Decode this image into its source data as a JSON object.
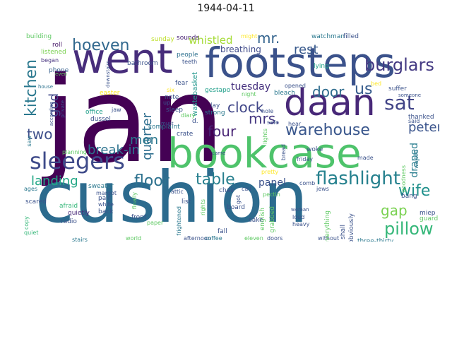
{
  "title": "1944-04-11",
  "words": [
    {
      "text": "jan",
      "color": "#440154"
    },
    {
      "text": "cushion",
      "color": "#2c6b8e"
    },
    {
      "text": "bookcase",
      "color": "#4ec36b"
    },
    {
      "text": "footsteps",
      "color": "#3b528b"
    },
    {
      "text": "went",
      "color": "#472d7b"
    },
    {
      "text": "daan",
      "color": "#482878"
    },
    {
      "text": "sleegers",
      "color": "#3e4a89"
    },
    {
      "text": "sat",
      "color": "#414487"
    },
    {
      "text": "burglars",
      "color": "#443a83"
    },
    {
      "text": "hoeven",
      "color": "#31688e"
    },
    {
      "text": "flashlight",
      "color": "#26818e"
    },
    {
      "text": "pillow",
      "color": "#35b779"
    },
    {
      "text": "kitchen",
      "color": "#2a788e"
    },
    {
      "text": "warehouse",
      "color": "#39568c"
    },
    {
      "text": "door",
      "color": "#2f6c8e"
    },
    {
      "text": "us",
      "color": "#365c8d"
    },
    {
      "text": "floor",
      "color": "#2d718e"
    },
    {
      "text": "wife",
      "color": "#21918c"
    },
    {
      "text": "table",
      "color": "#277f8e"
    },
    {
      "text": "clock",
      "color": "#404688"
    },
    {
      "text": "mrs.",
      "color": "#453781"
    },
    {
      "text": "mr.",
      "color": "#33638d"
    },
    {
      "text": "four",
      "color": "#482475"
    },
    {
      "text": "quarter",
      "color": "#2e6e8e"
    },
    {
      "text": "god",
      "color": "#3f4889"
    },
    {
      "text": "two",
      "color": "#3d4e8a"
    },
    {
      "text": "men",
      "color": "#2a778e"
    },
    {
      "text": "break-in",
      "color": "#2c728e"
    },
    {
      "text": "landing",
      "color": "#22a785"
    },
    {
      "text": "rest",
      "color": "#38598c"
    },
    {
      "text": "peter",
      "color": "#3a548c"
    },
    {
      "text": "gap",
      "color": "#7ad151"
    },
    {
      "text": "draped",
      "color": "#287d8e"
    },
    {
      "text": "panel",
      "color": "#3b528b"
    },
    {
      "text": "whistled",
      "color": "#a5db36"
    },
    {
      "text": "tuesday",
      "color": "#46307e"
    },
    {
      "text": "breathing",
      "color": "#3e4989"
    },
    {
      "text": "wastebasket",
      "color": "#1f968b"
    },
    {
      "text": "sunday",
      "color": "#bddf26"
    },
    {
      "text": "sounds",
      "color": "#482173"
    },
    {
      "text": "building",
      "color": "#5ec962"
    },
    {
      "text": "watchman",
      "color": "#2a788e"
    },
    {
      "text": "filled",
      "color": "#3b528b"
    },
    {
      "text": "might",
      "color": "#fde725"
    },
    {
      "text": "roll",
      "color": "#48186a"
    },
    {
      "text": "listened",
      "color": "#7ad151"
    },
    {
      "text": "began",
      "color": "#46327e"
    },
    {
      "text": "phone",
      "color": "#355f8d"
    },
    {
      "text": "people",
      "color": "#2d708e"
    },
    {
      "text": "fear",
      "color": "#3b528b"
    },
    {
      "text": "lying",
      "color": "#20a386"
    },
    {
      "text": "bed",
      "color": "#fde725"
    },
    {
      "text": "easter",
      "color": "#fde725"
    },
    {
      "text": "six",
      "color": "#fde725"
    },
    {
      "text": "gestapo",
      "color": "#1f9e89"
    },
    {
      "text": "bleach",
      "color": "#2a788e"
    },
    {
      "text": "suffer",
      "color": "#3b528b"
    },
    {
      "text": "house",
      "color": "#2c728e"
    },
    {
      "text": "office",
      "color": "#1f9e89"
    },
    {
      "text": "saw",
      "color": "#2a788e"
    },
    {
      "text": "dussel",
      "color": "#3b528b"
    },
    {
      "text": "planning",
      "color": "#5ec962"
    },
    {
      "text": "sweater",
      "color": "#2a788e"
    },
    {
      "text": "margot",
      "color": "#3b528b"
    },
    {
      "text": "ages",
      "color": "#2a788e"
    },
    {
      "text": "scared",
      "color": "#3b528b"
    },
    {
      "text": "afraid",
      "color": "#35b779"
    },
    {
      "text": "quietly",
      "color": "#482878"
    },
    {
      "text": "radio",
      "color": "#3b528b"
    },
    {
      "text": "pair",
      "color": "#3b528b"
    },
    {
      "text": "white",
      "color": "#3b528b"
    },
    {
      "text": "back",
      "color": "#3b528b"
    },
    {
      "text": "copy",
      "color": "#35b779"
    },
    {
      "text": "quiet",
      "color": "#35b779"
    },
    {
      "text": "stairs",
      "color": "#2a788e"
    },
    {
      "text": "world",
      "color": "#5ec962"
    },
    {
      "text": "afternoon",
      "color": "#3b528b"
    },
    {
      "text": "coffee",
      "color": "#2a788e"
    },
    {
      "text": "eleven",
      "color": "#5ec962"
    },
    {
      "text": "doors",
      "color": "#3b528b"
    },
    {
      "text": "without",
      "color": "#3b528b"
    },
    {
      "text": "three-thirty",
      "color": "#2a788e"
    },
    {
      "text": "fall",
      "color": "#3b528b"
    },
    {
      "text": "sake",
      "color": "#3b528b"
    },
    {
      "text": "board",
      "color": "#3b528b"
    },
    {
      "text": "front",
      "color": "#3b528b"
    },
    {
      "text": "list",
      "color": "#3b528b"
    },
    {
      "text": "paper",
      "color": "#5ec962"
    },
    {
      "text": "frightened",
      "color": "#2a788e"
    },
    {
      "text": "rights",
      "color": "#5ec962"
    },
    {
      "text": "note",
      "color": "#3b528b"
    },
    {
      "text": "sleep",
      "color": "#3b528b"
    },
    {
      "text": "up",
      "color": "#3b528b"
    },
    {
      "text": "teeth",
      "color": "#3b528b"
    },
    {
      "text": "bathroom",
      "color": "#3b528b"
    },
    {
      "text": "lay",
      "color": "#3b528b"
    },
    {
      "text": "strong",
      "color": "#2a788e"
    },
    {
      "text": "complaint",
      "color": "#2a788e"
    },
    {
      "text": "diary",
      "color": "#5ec962"
    },
    {
      "text": "hole",
      "color": "#3b528b"
    },
    {
      "text": "safe",
      "color": "#3b528b"
    },
    {
      "text": "crate",
      "color": "#3b528b"
    },
    {
      "text": "d.",
      "color": "#3b528b"
    },
    {
      "text": "woke",
      "color": "#3b528b"
    },
    {
      "text": "friday",
      "color": "#3b528b"
    },
    {
      "text": "thanked",
      "color": "#3b528b"
    },
    {
      "text": "waited",
      "color": "#2a788e"
    },
    {
      "text": "goodness",
      "color": "#5ec962"
    },
    {
      "text": "made",
      "color": "#3b528b"
    },
    {
      "text": "pretty",
      "color": "#fde725"
    },
    {
      "text": "attic",
      "color": "#3b528b"
    },
    {
      "text": "chair",
      "color": "#3b528b"
    },
    {
      "text": "call",
      "color": "#3b528b"
    },
    {
      "text": "got",
      "color": "#3b528b"
    },
    {
      "text": "pectin",
      "color": "#5ec962"
    },
    {
      "text": "jews",
      "color": "#3b528b"
    },
    {
      "text": "comb",
      "color": "#3b528b"
    },
    {
      "text": "bang",
      "color": "#3b528b"
    },
    {
      "text": "miep",
      "color": "#3b528b"
    },
    {
      "text": "guard",
      "color": "#5ec962"
    },
    {
      "text": "woman",
      "color": "#3b528b"
    },
    {
      "text": "loud",
      "color": "#3b528b"
    },
    {
      "text": "heavy",
      "color": "#3b528b"
    },
    {
      "text": "everything",
      "color": "#5ec962"
    },
    {
      "text": "shall",
      "color": "#3b528b"
    },
    {
      "text": "obviously",
      "color": "#3b528b"
    },
    {
      "text": "english",
      "color": "#5ec962"
    },
    {
      "text": "grabbed",
      "color": "#5ec962"
    },
    {
      "text": "finally",
      "color": "#5ec962"
    },
    {
      "text": "lights",
      "color": "#5ec962"
    },
    {
      "text": "bread",
      "color": "#3b528b"
    },
    {
      "text": "opened",
      "color": "#3b528b"
    },
    {
      "text": "hear",
      "color": "#3b528b"
    },
    {
      "text": "said",
      "color": "#3b528b"
    },
    {
      "text": "someone",
      "color": "#3b528b"
    },
    {
      "text": "downstairs",
      "color": "#3b528b"
    },
    {
      "text": "according",
      "color": "#3b528b"
    },
    {
      "text": "private",
      "color": "#3b528b"
    },
    {
      "text": "jaw",
      "color": "#3b528b"
    },
    {
      "text": "must",
      "color": "#3b528b"
    },
    {
      "text": "even",
      "color": "#5ec962"
    },
    {
      "text": "came",
      "color": "#3b528b"
    },
    {
      "text": "night",
      "color": "#5ec962"
    }
  ]
}
